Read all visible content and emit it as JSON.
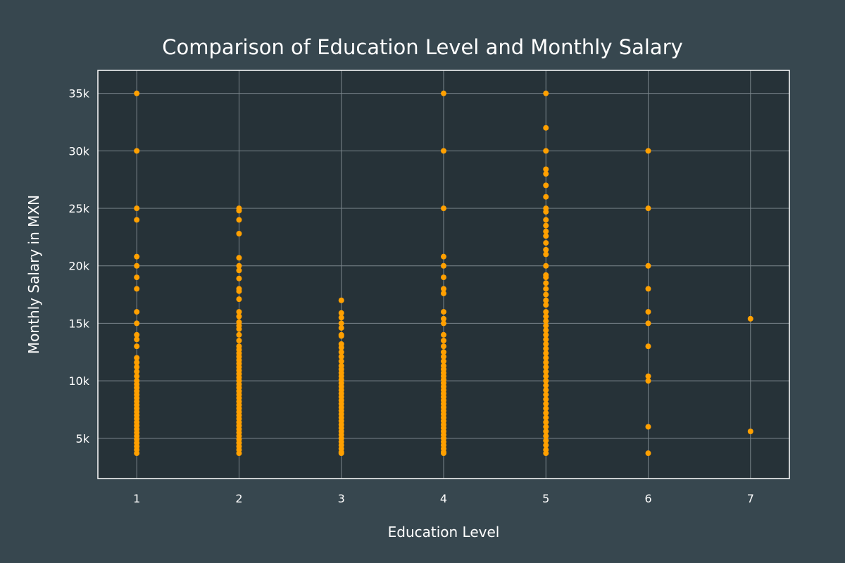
{
  "chart_data": {
    "type": "scatter",
    "title": "Comparison of Education Level and Monthly Salary",
    "xlabel": "Education Level",
    "ylabel": "Monthly Salary in MXN",
    "xlim": [
      0.62,
      7.38
    ],
    "ylim": [
      1500,
      37000
    ],
    "x_ticks": [
      1,
      2,
      3,
      4,
      5,
      6,
      7
    ],
    "x_tick_labels": [
      "1",
      "2",
      "3",
      "4",
      "5",
      "6",
      "7"
    ],
    "y_ticks": [
      5000,
      10000,
      15000,
      20000,
      25000,
      30000,
      35000
    ],
    "y_tick_labels": [
      "5k",
      "10k",
      "15k",
      "20k",
      "25k",
      "30k",
      "35k"
    ],
    "grid": true,
    "colors": {
      "page_background": "#37474f",
      "plot_background": "#263238",
      "grid": "#7b868c",
      "frame": "#ffffff",
      "text": "#ffffff",
      "marker": "#ffa000"
    },
    "series": [
      {
        "x_level": 1,
        "points": [
          35000,
          30000,
          25000,
          24000,
          20800,
          20000,
          19000,
          18000,
          16000,
          15000,
          14000,
          13600,
          13000,
          12000,
          11600,
          11200,
          10800,
          10400,
          10000,
          9700,
          9400,
          9100,
          8800,
          8500,
          8200,
          7900,
          7600,
          7300,
          7000,
          6700,
          6400,
          6100,
          5800,
          5500,
          5200,
          4900,
          4600,
          4300,
          4000,
          3700
        ]
      },
      {
        "x_level": 2,
        "points": [
          25000,
          24800,
          24000,
          22800,
          20700,
          20000,
          19600,
          18900,
          18000,
          17800,
          17100,
          16000,
          15600,
          15100,
          14800,
          14500,
          14000,
          13500,
          13000,
          12700,
          12400,
          12100,
          11800,
          11500,
          11200,
          10900,
          10600,
          10300,
          10000,
          9700,
          9400,
          9100,
          8800,
          8500,
          8200,
          7900,
          7600,
          7300,
          7000,
          6700,
          6400,
          6100,
          5800,
          5500,
          5200,
          4900,
          4600,
          4300,
          4000,
          3700
        ]
      },
      {
        "x_level": 3,
        "points": [
          17000,
          15900,
          15500,
          15000,
          14600,
          14000,
          13900,
          13200,
          12900,
          12500,
          12100,
          11700,
          11300,
          11000,
          10700,
          10400,
          10100,
          9800,
          9500,
          9200,
          8900,
          8600,
          8300,
          8000,
          7700,
          7400,
          7100,
          6800,
          6500,
          6200,
          5900,
          5600,
          5300,
          5000,
          4700,
          4400,
          4100,
          3800,
          3700
        ]
      },
      {
        "x_level": 4,
        "points": [
          35000,
          30000,
          25000,
          20800,
          20000,
          19000,
          18000,
          17600,
          16000,
          15400,
          15000,
          14000,
          13500,
          13000,
          12500,
          12100,
          11700,
          11300,
          11000,
          10700,
          10400,
          10100,
          9800,
          9500,
          9200,
          8900,
          8600,
          8300,
          8000,
          7700,
          7400,
          7100,
          6800,
          6500,
          6200,
          5900,
          5600,
          5300,
          5000,
          4700,
          4400,
          4100,
          3800,
          3700
        ]
      },
      {
        "x_level": 5,
        "points": [
          35000,
          32000,
          30000,
          28400,
          28000,
          27000,
          26000,
          25000,
          24700,
          24000,
          23500,
          23000,
          22600,
          22000,
          21400,
          21000,
          20000,
          19200,
          19000,
          18500,
          18000,
          17500,
          17000,
          16600,
          16000,
          15600,
          15200,
          14800,
          14400,
          14000,
          13600,
          13200,
          12800,
          12400,
          12000,
          11600,
          11200,
          10800,
          10400,
          10000,
          9600,
          9200,
          8800,
          8400,
          8000,
          7600,
          7200,
          6800,
          6400,
          6000,
          5600,
          5200,
          4800,
          4400,
          4000,
          3700
        ]
      },
      {
        "x_level": 6,
        "points": [
          30000,
          25000,
          20000,
          18000,
          16000,
          15000,
          13000,
          10400,
          10000,
          6000,
          3700
        ]
      },
      {
        "x_level": 7,
        "points": [
          15400,
          5600
        ]
      }
    ]
  }
}
